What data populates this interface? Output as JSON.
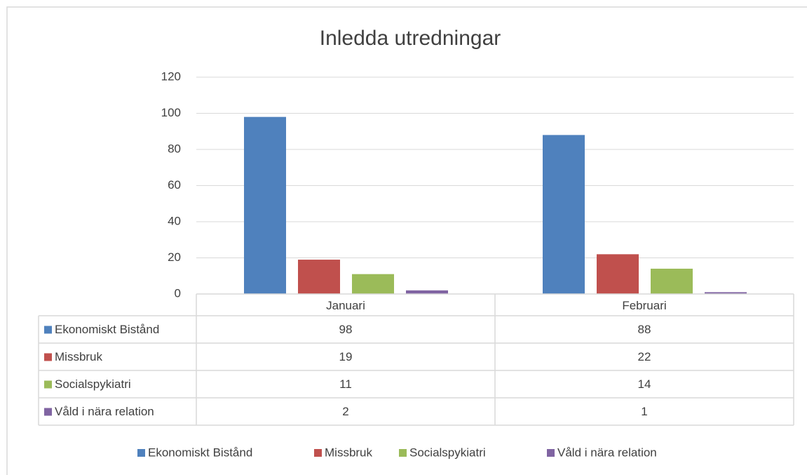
{
  "chart_data": {
    "type": "bar",
    "title": "Inledda utredningar",
    "categories": [
      "Januari",
      "Februari"
    ],
    "series": [
      {
        "name": "Ekonomiskt Bistånd",
        "color": "#4f81bd",
        "values": [
          98,
          88
        ]
      },
      {
        "name": "Missbruk",
        "color": "#c0504d",
        "values": [
          19,
          22
        ]
      },
      {
        "name": "Socialspykiatri",
        "color": "#9bbb59",
        "values": [
          11,
          14
        ]
      },
      {
        "name": "Våld i nära relation",
        "color": "#8064a2",
        "values": [
          2,
          1
        ]
      }
    ],
    "ylim": [
      0,
      120
    ],
    "yticks": [
      0,
      20,
      40,
      60,
      80,
      100,
      120
    ],
    "grid": true,
    "legend": "bottom",
    "data_table": true
  }
}
